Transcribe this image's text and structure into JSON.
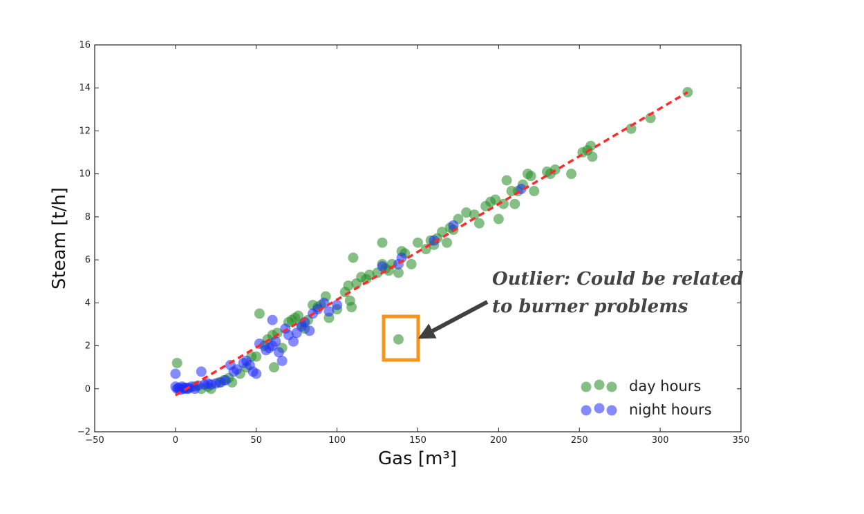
{
  "chart_data": {
    "type": "scatter",
    "title": "",
    "xlabel": "Gas [m³]",
    "ylabel": "Steam [t/h]",
    "xlim": [
      -50,
      350
    ],
    "ylim": [
      -2,
      16
    ],
    "xticks": [
      -50,
      0,
      50,
      100,
      150,
      200,
      250,
      300,
      350
    ],
    "yticks": [
      -2,
      0,
      2,
      4,
      6,
      8,
      10,
      12,
      14,
      16
    ],
    "grid": false,
    "legend_position": "bottom-right",
    "series": [
      {
        "name": "day hours",
        "color": "#228b22",
        "points": [
          [
            1,
            1.2
          ],
          [
            2,
            0
          ],
          [
            5,
            0.05
          ],
          [
            8,
            0
          ],
          [
            12,
            0.1
          ],
          [
            16,
            0
          ],
          [
            20,
            0.1
          ],
          [
            22,
            0
          ],
          [
            27,
            0.3
          ],
          [
            30,
            0.4
          ],
          [
            33,
            0.5
          ],
          [
            35,
            0.3
          ],
          [
            40,
            0.7
          ],
          [
            44,
            1
          ],
          [
            47,
            1.5
          ],
          [
            50,
            1.5
          ],
          [
            52,
            3.5
          ],
          [
            55,
            2
          ],
          [
            57,
            2.3
          ],
          [
            60,
            2.5
          ],
          [
            61,
            1
          ],
          [
            63,
            2.6
          ],
          [
            66,
            1.9
          ],
          [
            70,
            3.1
          ],
          [
            72,
            3.2
          ],
          [
            74,
            3.3
          ],
          [
            76,
            3.4
          ],
          [
            78,
            3
          ],
          [
            80,
            2.8
          ],
          [
            82,
            3.2
          ],
          [
            85,
            3.9
          ],
          [
            88,
            3.8
          ],
          [
            90,
            3.9
          ],
          [
            93,
            4.3
          ],
          [
            95,
            3.3
          ],
          [
            100,
            3.7
          ],
          [
            105,
            4.5
          ],
          [
            107,
            4.8
          ],
          [
            108,
            4.1
          ],
          [
            109,
            3.8
          ],
          [
            110,
            6.1
          ],
          [
            112,
            4.9
          ],
          [
            115,
            5.2
          ],
          [
            118,
            5.1
          ],
          [
            120,
            5.3
          ],
          [
            125,
            5.4
          ],
          [
            128,
            6.8
          ],
          [
            128,
            5.8
          ],
          [
            130,
            5.6
          ],
          [
            132,
            5.5
          ],
          [
            134,
            5.8
          ],
          [
            138,
            5.4
          ],
          [
            138,
            2.3
          ],
          [
            140,
            6.4
          ],
          [
            142,
            6.3
          ],
          [
            146,
            5.8
          ],
          [
            150,
            6.8
          ],
          [
            155,
            6.5
          ],
          [
            158,
            6.9
          ],
          [
            160,
            6.7
          ],
          [
            162,
            7
          ],
          [
            165,
            7.3
          ],
          [
            168,
            6.8
          ],
          [
            170,
            7.5
          ],
          [
            172,
            7.4
          ],
          [
            175,
            7.9
          ],
          [
            180,
            8.2
          ],
          [
            185,
            8.1
          ],
          [
            188,
            7.7
          ],
          [
            192,
            8.5
          ],
          [
            195,
            8.7
          ],
          [
            198,
            8.8
          ],
          [
            200,
            7.9
          ],
          [
            203,
            8.6
          ],
          [
            205,
            9.7
          ],
          [
            208,
            9.2
          ],
          [
            210,
            8.6
          ],
          [
            212,
            9.2
          ],
          [
            215,
            9.5
          ],
          [
            218,
            10
          ],
          [
            220,
            9.9
          ],
          [
            222,
            9.2
          ],
          [
            230,
            10.1
          ],
          [
            232,
            10
          ],
          [
            235,
            10.2
          ],
          [
            245,
            10
          ],
          [
            252,
            11
          ],
          [
            255,
            11.1
          ],
          [
            257,
            11.3
          ],
          [
            258,
            10.8
          ],
          [
            282,
            12.1
          ],
          [
            294,
            12.6
          ],
          [
            317,
            13.8
          ]
        ]
      },
      {
        "name": "night hours",
        "color": "#1f2bff",
        "points": [
          [
            0,
            0.7
          ],
          [
            0,
            0.1
          ],
          [
            1,
            0
          ],
          [
            2,
            0.05
          ],
          [
            3,
            -0.05
          ],
          [
            4,
            0.1
          ],
          [
            5,
            0
          ],
          [
            6,
            0.05
          ],
          [
            7,
            0
          ],
          [
            8,
            0.05
          ],
          [
            10,
            0.1
          ],
          [
            12,
            0
          ],
          [
            14,
            0.15
          ],
          [
            16,
            0.8
          ],
          [
            18,
            0.2
          ],
          [
            20,
            0.25
          ],
          [
            22,
            0.2
          ],
          [
            25,
            0.25
          ],
          [
            28,
            0.3
          ],
          [
            31,
            0.4
          ],
          [
            34,
            1.1
          ],
          [
            36,
            0.8
          ],
          [
            38,
            0.9
          ],
          [
            42,
            1.2
          ],
          [
            44,
            1.3
          ],
          [
            46,
            1.1
          ],
          [
            48,
            0.8
          ],
          [
            50,
            0.7
          ],
          [
            52,
            2.1
          ],
          [
            56,
            1.8
          ],
          [
            58,
            1.9
          ],
          [
            60,
            2
          ],
          [
            62,
            2.2
          ],
          [
            64,
            1.7
          ],
          [
            66,
            1.3
          ],
          [
            68,
            2.8
          ],
          [
            70,
            2.5
          ],
          [
            73,
            2.2
          ],
          [
            75,
            2.6
          ],
          [
            78,
            2.9
          ],
          [
            80,
            3.1
          ],
          [
            83,
            2.7
          ],
          [
            85,
            3.5
          ],
          [
            88,
            3.7
          ],
          [
            92,
            4
          ],
          [
            95,
            3.6
          ],
          [
            100,
            3.9
          ],
          [
            128,
            5.7
          ],
          [
            138,
            5.8
          ],
          [
            140,
            6.1
          ],
          [
            160,
            6.9
          ],
          [
            172,
            7.6
          ],
          [
            214,
            9.3
          ],
          [
            60,
            3.2
          ]
        ]
      }
    ],
    "fit_line": {
      "style": "dashed",
      "color": "#ff2a2a",
      "x": [
        0,
        317
      ],
      "y": [
        -0.3,
        13.8
      ]
    },
    "annotation": {
      "text_line1": "Outlier: Could be related",
      "text_line2": "to burner problems",
      "target": [
        138,
        2.3
      ],
      "box_color": "#f7941d",
      "arrow_color": "#404040"
    }
  }
}
